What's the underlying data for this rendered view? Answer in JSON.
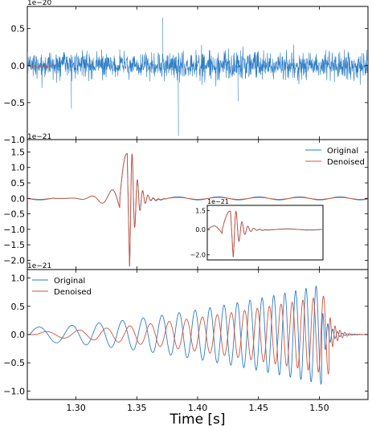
{
  "colors": {
    "original": "#2d7dc6",
    "denoised": "#d2553a",
    "axis": "#000000"
  },
  "chart_data": [
    {
      "type": "line",
      "panel": "top",
      "scale_label": "1e−20",
      "xlim": [
        1.26,
        1.54
      ],
      "ylim": [
        -1.0,
        0.8
      ],
      "yticks": [
        -1.0,
        -0.5,
        0.0,
        0.5
      ],
      "ytick_labels": [
        "−1.0",
        "−0.5",
        "0.0",
        "0.5"
      ],
      "legend": null,
      "series": [
        {
          "kind": "noise",
          "color_key": "original",
          "envelope": 0.3,
          "peak_spikes": [
            [
              1.371,
              0.65
            ],
            [
              1.384,
              -0.95
            ],
            [
              1.296,
              -0.58
            ],
            [
              1.433,
              -0.48
            ]
          ]
        },
        {
          "kind": "burst",
          "color_key": "denoised",
          "amplitude": 0.02,
          "merger_time": 1.342
        }
      ]
    },
    {
      "type": "line",
      "panel": "middle",
      "scale_label": "1e−21",
      "xlim": [
        1.26,
        1.54
      ],
      "ylim": [
        -2.3,
        1.9
      ],
      "yticks": [
        -2.0,
        -1.5,
        -1.0,
        -0.5,
        0.0,
        0.5,
        1.0,
        1.5
      ],
      "ytick_labels": [
        "−2.0",
        "−1.5",
        "−1.0",
        "−0.5",
        "0.0",
        "0.5",
        "1.0",
        "1.5"
      ],
      "legend": {
        "position": "upper-right",
        "entries": [
          "Original",
          "Denoised"
        ]
      },
      "series": [
        {
          "name": "Original",
          "kind": "burst",
          "color_key": "original",
          "merger_time": 1.342,
          "peak": 1.6,
          "trough": -2.2,
          "ringdown_amplitude": 0.05
        },
        {
          "name": "Denoised",
          "kind": "burst",
          "color_key": "denoised",
          "merger_time": 1.342,
          "peak": 1.6,
          "trough": -2.2,
          "ringdown_amplitude": 0.03
        }
      ],
      "inset": {
        "scale_label": "1e−21",
        "ylim": [
          -2.4,
          1.9
        ],
        "yticks": [
          -2.0,
          0.0,
          1.5
        ],
        "ytick_labels": [
          "−2.0",
          "0.0",
          "1.5"
        ]
      }
    },
    {
      "type": "line",
      "panel": "bottom",
      "scale_label": "1e−21",
      "xlim": [
        1.26,
        1.54
      ],
      "ylim": [
        -1.15,
        1.15
      ],
      "yticks": [
        -1.0,
        -0.5,
        0.0,
        0.5,
        1.0
      ],
      "ytick_labels": [
        "−1.0",
        "−0.5",
        "0.0",
        "0.5",
        "1.0"
      ],
      "legend": {
        "position": "upper-left",
        "entries": [
          "Original",
          "Denoised"
        ]
      },
      "xticks": [
        1.3,
        1.35,
        1.4,
        1.45,
        1.5
      ],
      "xtick_labels": [
        "1.30",
        "1.35",
        "1.40",
        "1.45",
        "1.50"
      ],
      "xlabel": "Time [s]",
      "series": [
        {
          "name": "Original",
          "kind": "chirp",
          "color_key": "original",
          "amplitude_start": 0.13,
          "amplitude_end": 0.88,
          "freq_start": 32,
          "freq_end": 125,
          "end_time": 1.502
        },
        {
          "name": "Denoised",
          "kind": "chirp",
          "color_key": "denoised",
          "amplitude_start": 0.05,
          "amplitude_end": 0.7,
          "freq_start": 32,
          "freq_end": 125,
          "end_time": 1.508
        }
      ]
    }
  ]
}
